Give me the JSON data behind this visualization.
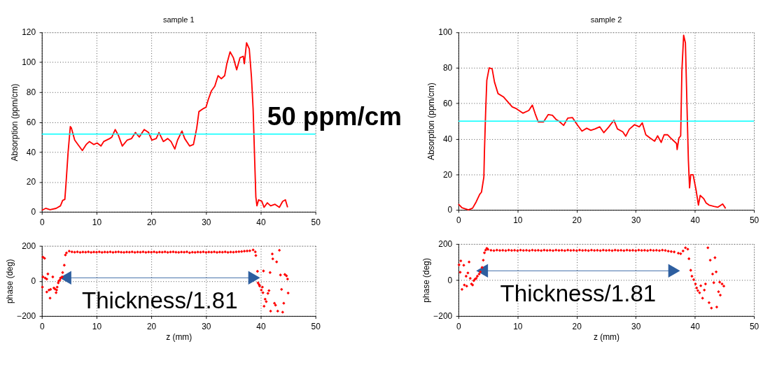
{
  "chart_data": [
    {
      "type": "line",
      "title": "sample 1",
      "ylabel": "Absorption (ppm/cm)",
      "xlim": [
        0,
        50
      ],
      "xticks": [
        0,
        10,
        20,
        30,
        40,
        50
      ],
      "ylim": [
        0,
        120
      ],
      "yticks": [
        0,
        20,
        40,
        60,
        80,
        100,
        120
      ],
      "grid": true,
      "legend": false,
      "line_style": "solid",
      "marker": "none",
      "ref_lines": [
        {
          "axis": "y",
          "value": 52,
          "label": "50 ppm/cm",
          "color": "#00ffff"
        }
      ],
      "series": [
        {
          "color": "#ff0000",
          "x": [
            0,
            0.7,
            1.5,
            2.6,
            3.4,
            3.8,
            4.2,
            4.4,
            4.8,
            5.2,
            5.4,
            6,
            6.6,
            7.4,
            8.1,
            8.7,
            9.5,
            10.1,
            10.8,
            11.3,
            12.4,
            12.8,
            13.4,
            14,
            14.7,
            15.6,
            16.4,
            17.1,
            17.8,
            18.7,
            19.5,
            20.1,
            20.9,
            21.4,
            22.2,
            23,
            23.6,
            24.3,
            24.8,
            25.6,
            26.1,
            27,
            27.7,
            28.3,
            28.7,
            29.5,
            30,
            30.4,
            31,
            31.6,
            32.2,
            32.8,
            33.4,
            33.8,
            34.4,
            35,
            35.6,
            36.2,
            36.8,
            37,
            37.4,
            37.9,
            38.3,
            38.6,
            38.9,
            39.1,
            39.3,
            39.6,
            40.2,
            40.6,
            41.2,
            41.8,
            42.6,
            43.4,
            44,
            44.5,
            44.9
          ],
          "values": [
            1,
            2.3,
            1.4,
            2.3,
            4,
            7.6,
            8.3,
            18,
            40,
            57,
            56,
            48,
            45,
            41,
            45,
            47,
            45,
            46,
            44,
            47,
            49,
            50,
            55,
            51,
            44,
            48,
            49,
            53,
            50,
            55,
            53,
            48,
            49,
            53,
            47,
            49,
            47,
            42,
            48,
            54,
            49,
            44,
            45,
            56,
            67,
            69,
            70,
            75,
            81,
            84,
            91,
            89,
            91,
            99,
            107,
            103,
            95,
            103,
            104,
            99,
            113,
            109,
            90,
            69,
            33,
            10,
            4,
            8,
            7,
            3,
            6,
            4,
            5,
            3,
            7,
            8,
            3
          ]
        }
      ]
    },
    {
      "type": "line",
      "title": "sample 2",
      "ylabel": "Absorption (ppm/cm)",
      "xlim": [
        0,
        50
      ],
      "xticks": [
        0,
        10,
        20,
        30,
        40,
        50
      ],
      "ylim": [
        0,
        100
      ],
      "yticks": [
        0,
        20,
        40,
        60,
        80,
        100
      ],
      "grid": true,
      "legend": false,
      "line_style": "solid",
      "marker": "none",
      "ref_lines": [
        {
          "axis": "y",
          "value": 50,
          "color": "#00ffff"
        }
      ],
      "series": [
        {
          "color": "#ff0000",
          "x": [
            0,
            0.6,
            1.7,
            2.4,
            3,
            3.6,
            3.9,
            4.3,
            4.4,
            4.6,
            4.8,
            5.2,
            5.7,
            6.1,
            6.7,
            7.6,
            9.1,
            9.8,
            10.9,
            11.9,
            12.5,
            13,
            13.5,
            14.4,
            15.2,
            15.9,
            16.5,
            17,
            17.8,
            18.5,
            19.3,
            20,
            20.9,
            21.7,
            22.4,
            23.1,
            23.9,
            24.6,
            25.4,
            26.3,
            26.9,
            27.8,
            28.3,
            28.9,
            29.8,
            30.6,
            31.1,
            31.7,
            32.4,
            33.2,
            33.7,
            34.3,
            34.8,
            35.4,
            35.9,
            36.9,
            37.0,
            37.3,
            37.6,
            37.8,
            38.1,
            38.4,
            38.7,
            38.9,
            39.1,
            39.3,
            39.7,
            40.2,
            40.6,
            40.9,
            41.5,
            41.9,
            42.4,
            43.2,
            43.9,
            44.7,
            45.2
          ],
          "values": [
            3.3,
            1.2,
            0,
            1,
            4.5,
            8.8,
            10,
            18.5,
            33,
            55,
            73,
            80,
            79.5,
            72,
            65.5,
            63.7,
            58,
            57,
            54.5,
            56,
            59,
            54,
            49.6,
            49.6,
            53.7,
            53.3,
            51,
            50,
            47.6,
            51.7,
            52,
            48.4,
            44.4,
            46,
            44.8,
            45.6,
            46.8,
            43.5,
            46.6,
            50.5,
            45.6,
            44,
            41.5,
            45.4,
            48,
            46.8,
            49,
            42.3,
            40.5,
            38.7,
            41.7,
            38,
            42.3,
            42.3,
            40.5,
            37.4,
            34,
            40.5,
            41.7,
            78,
            98.4,
            94,
            54,
            28,
            12.4,
            19.8,
            19.8,
            11.2,
            2.7,
            8.2,
            6.3,
            3.9,
            2.7,
            2,
            1.5,
            3.3,
            0.8
          ]
        }
      ]
    },
    {
      "type": "scatter",
      "xlabel": "z (mm)",
      "ylabel": "phase (deg)",
      "xlim": [
        0,
        50
      ],
      "xticks": [
        0,
        10,
        20,
        30,
        40,
        50
      ],
      "ylim": [
        -200,
        200
      ],
      "yticks": [
        -200,
        0,
        200
      ],
      "grid": true,
      "legend": false,
      "marker": "diamond",
      "annotations": [
        "Thickness/1.81"
      ],
      "series": [
        {
          "type": "line",
          "marker": "triangle",
          "color": "#2e5fa0",
          "x": [
            4.3,
            38.8
          ],
          "values": [
            18,
            18
          ]
        },
        {
          "color": "#ff0000",
          "x": [
            0.1,
            0.2,
            0.5,
            0.2,
            0.6,
            0.9,
            0.9,
            1.1,
            1.3,
            1.5,
            1.6,
            2,
            2.2,
            2.4,
            2.6,
            2.7,
            2.8,
            3,
            3.1,
            3.3,
            3.4,
            3.7,
            3.8,
            4.1,
            4.3,
            4.5,
            5,
            5.5,
            6,
            6.5,
            7,
            7.5,
            8,
            8.5,
            9,
            9.5,
            10,
            10.5,
            11,
            11.5,
            12,
            12.5,
            13,
            13.5,
            14,
            14.5,
            15,
            15.5,
            16,
            16.5,
            17,
            17.5,
            18,
            18.5,
            19,
            19.5,
            20,
            20.5,
            21,
            21.5,
            22,
            22.5,
            23,
            23.5,
            24,
            24.5,
            25,
            25.5,
            26,
            26.5,
            27,
            27.5,
            28,
            28.5,
            29,
            29.5,
            30,
            30.5,
            31,
            31.5,
            32,
            32.5,
            33,
            33.5,
            34,
            34.5,
            35,
            35.5,
            36,
            36.5,
            37,
            37.5,
            38,
            38.6,
            39,
            39.1,
            39.4,
            39.5,
            39.7,
            39.8,
            40.1,
            40.3,
            40.5,
            40.4,
            40.6,
            40.8,
            41,
            41.3,
            41.5,
            41.7,
            41.8,
            42.1,
            42.2,
            42.5,
            42.7,
            42.9,
            43.1,
            43.4,
            43.6,
            43.8,
            44,
            44.2,
            44.4,
            44.7,
            44.9,
            45
          ],
          "values": [
            -35,
            136,
            129,
            23,
            17,
            11,
            -63,
            40,
            -52,
            -98,
            -48,
            23,
            -40,
            -46,
            -67,
            -52,
            -35,
            -11,
            0,
            6,
            17,
            23,
            48,
            90,
            148,
            160,
            170,
            166,
            164,
            166,
            163,
            165,
            164,
            166,
            163,
            165,
            164,
            166,
            163,
            165,
            164,
            166,
            163,
            165,
            166,
            164,
            163,
            165,
            164,
            166,
            163,
            165,
            164,
            166,
            163,
            165,
            164,
            166,
            163,
            165,
            164,
            166,
            163,
            165,
            166,
            164,
            163,
            165,
            164,
            166,
            161,
            164,
            163,
            165,
            164,
            166,
            163,
            165,
            164,
            166,
            163,
            165,
            164,
            166,
            163,
            165,
            164,
            166,
            167,
            168,
            170,
            171,
            172,
            177,
            166,
            145,
            55,
            -11,
            -21,
            -29,
            -52,
            -35,
            57,
            -67,
            -144,
            -104,
            -118,
            -71,
            -55,
            48,
            -172,
            154,
            126,
            -127,
            -138,
            109,
            -172,
            175,
            34,
            -48,
            -178,
            -127,
            37,
            29,
            11,
            -69
          ]
        }
      ]
    },
    {
      "type": "scatter",
      "xlabel": "z (mm)",
      "ylabel": "phase (deg)",
      "xlim": [
        0,
        50
      ],
      "xticks": [
        0,
        10,
        20,
        30,
        40,
        50
      ],
      "ylim": [
        -200,
        200
      ],
      "yticks": [
        -200,
        0,
        200
      ],
      "grid": true,
      "legend": false,
      "marker": "diamond",
      "annotations": [
        "Thickness/1.81"
      ],
      "series": [
        {
          "type": "line",
          "marker": "triangle",
          "color": "#2e5fa0",
          "x": [
            4,
            36.5
          ],
          "values": [
            51,
            51
          ]
        },
        {
          "color": "#ff0000",
          "x": [
            0.1,
            0.3,
            0.4,
            0.6,
            0.9,
            1,
            1.3,
            1.4,
            1.6,
            1.8,
            2,
            2.2,
            2.4,
            2.6,
            2.8,
            3,
            3.2,
            3.5,
            3.7,
            4,
            4.2,
            4.4,
            4.6,
            4.8,
            5,
            5.5,
            6,
            6.5,
            7,
            7.5,
            8,
            8.5,
            9,
            9.5,
            10,
            10.5,
            11,
            11.5,
            12,
            12.5,
            13,
            13.5,
            14,
            14.5,
            15,
            15.5,
            16,
            16.5,
            17,
            17.5,
            18,
            18.5,
            19,
            19.5,
            20,
            20.5,
            21,
            21.5,
            22,
            22.5,
            23,
            23.5,
            24,
            24.5,
            25,
            25.5,
            26,
            26.5,
            27,
            27.5,
            28,
            28.5,
            29,
            29.5,
            30,
            30.5,
            31,
            31.5,
            32,
            32.5,
            33,
            33.5,
            34,
            34.5,
            35,
            35.5,
            36,
            36.5,
            37.2,
            37.6,
            38,
            38.4,
            38.8,
            39,
            39.3,
            39.5,
            39.8,
            40.1,
            40.3,
            40.5,
            40.8,
            41,
            41.3,
            41.6,
            41.8,
            42.2,
            42.4,
            42.6,
            42.8,
            43,
            43.2,
            43.4,
            43.6,
            43.7,
            44,
            44.2,
            44.3,
            44.6,
            44.9
          ],
          "values": [
            84,
            43,
            106,
            -52,
            82,
            -28,
            21,
            -34,
            39,
            100,
            9,
            -22,
            -28,
            -4,
            5,
            9,
            21,
            33,
            45,
            70,
            110,
            151,
            166,
            176,
            170,
            165,
            163,
            166,
            164,
            165,
            163,
            166,
            164,
            165,
            163,
            166,
            164,
            165,
            163,
            166,
            164,
            165,
            163,
            166,
            164,
            165,
            163,
            166,
            164,
            165,
            163,
            166,
            164,
            165,
            163,
            166,
            164,
            165,
            163,
            166,
            164,
            165,
            163,
            166,
            164,
            165,
            163,
            166,
            164,
            165,
            163,
            166,
            164,
            165,
            163,
            166,
            164,
            165,
            163,
            166,
            164,
            165,
            163,
            166,
            164,
            160,
            158,
            156,
            149,
            146,
            161,
            179,
            171,
            118,
            54,
            21,
            2,
            -22,
            -44,
            -59,
            -71,
            -32,
            -101,
            -56,
            -22,
            179,
            -126,
            110,
            -156,
            33,
            -15,
            124,
            45,
            -150,
            -65,
            -12,
            -84,
            -22,
            -34
          ]
        }
      ]
    }
  ]
}
